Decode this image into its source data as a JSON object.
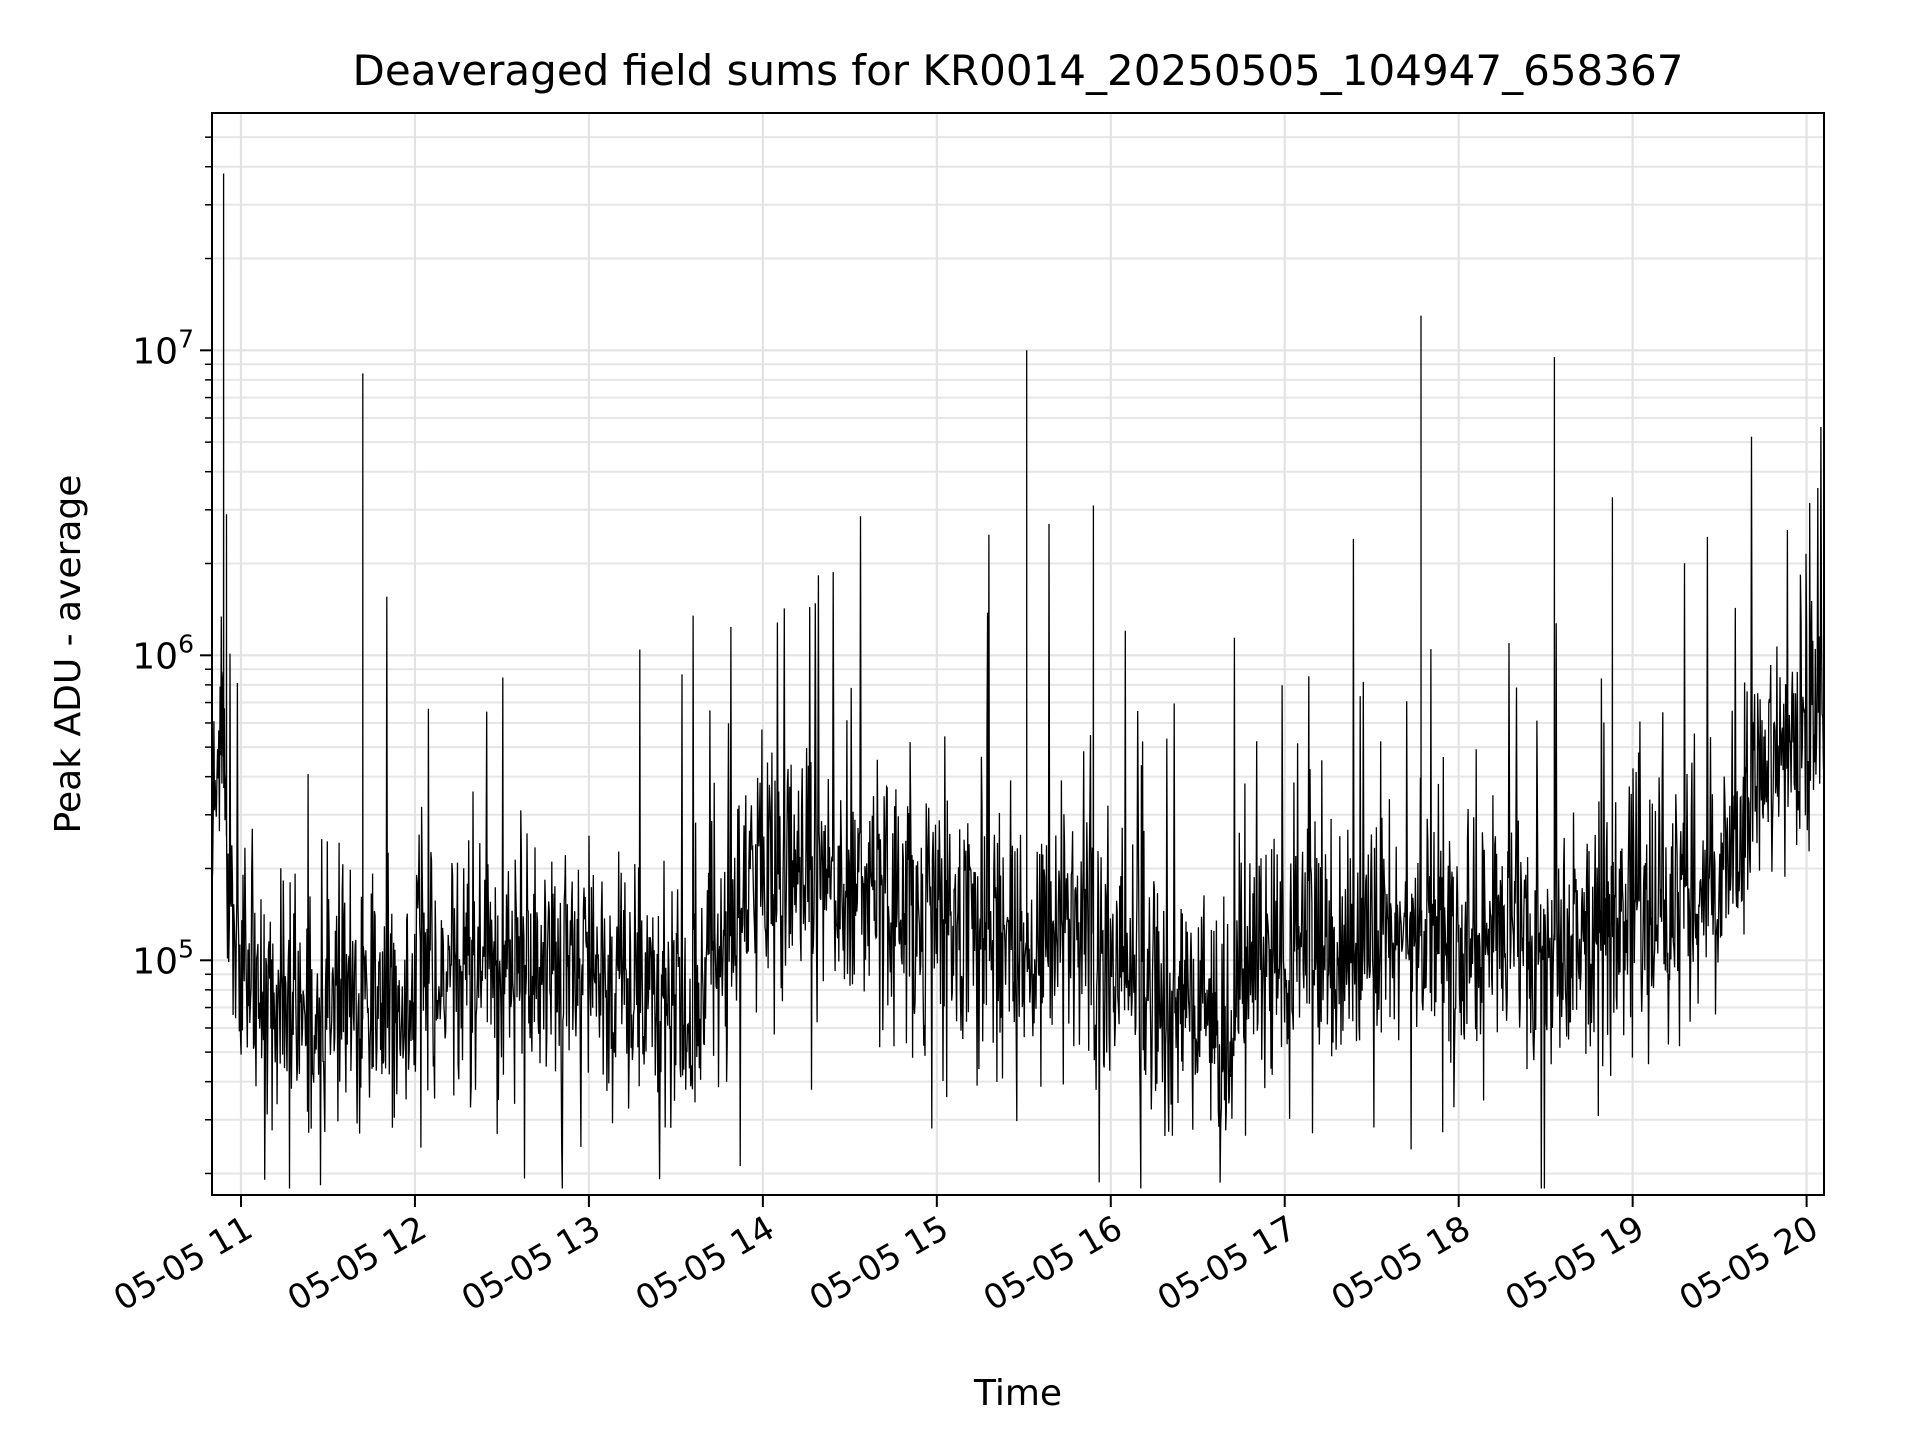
{
  "chart_data": {
    "type": "line",
    "title": "Deaveraged field sums for KR0014_20250505_104947_658367",
    "xlabel": "Time",
    "ylabel": "Peak ADU - average",
    "yscale": "log",
    "grid": true,
    "line_color": "#000000",
    "xlim": [
      "2025-05-05 10:50",
      "2025-05-05 20:06"
    ],
    "ylim": [
      17000,
      60000000
    ],
    "x_ticks": [
      {
        "value": "2025-05-05 11:00",
        "label": "05-05 11"
      },
      {
        "value": "2025-05-05 12:00",
        "label": "05-05 12"
      },
      {
        "value": "2025-05-05 13:00",
        "label": "05-05 13"
      },
      {
        "value": "2025-05-05 14:00",
        "label": "05-05 14"
      },
      {
        "value": "2025-05-05 15:00",
        "label": "05-05 15"
      },
      {
        "value": "2025-05-05 16:00",
        "label": "05-05 16"
      },
      {
        "value": "2025-05-05 17:00",
        "label": "05-05 17"
      },
      {
        "value": "2025-05-05 18:00",
        "label": "05-05 18"
      },
      {
        "value": "2025-05-05 19:00",
        "label": "05-05 19"
      },
      {
        "value": "2025-05-05 20:00",
        "label": "05-05 20"
      }
    ],
    "y_ticks": [
      {
        "value": 100000,
        "base": "10",
        "exp": "5"
      },
      {
        "value": 1000000,
        "base": "10",
        "exp": "6"
      },
      {
        "value": 10000000,
        "base": "10",
        "exp": "7"
      }
    ],
    "series": [
      {
        "points": [
          [
            "2025-05-05 10:50",
            250000
          ],
          [
            "2025-05-05 10:53",
            850000
          ],
          [
            "2025-05-05 10:54",
            38000000
          ],
          [
            "2025-05-05 10:55",
            2900000
          ],
          [
            "2025-05-05 10:56",
            140000
          ],
          [
            "2025-05-05 11:00",
            95000
          ],
          [
            "2025-05-05 11:10",
            75000
          ],
          [
            "2025-05-05 11:20",
            60000
          ],
          [
            "2025-05-05 11:30",
            80000
          ],
          [
            "2025-05-05 11:42",
            8400000
          ],
          [
            "2025-05-05 11:50",
            70000
          ],
          [
            "2025-05-05 12:00",
            85000
          ],
          [
            "2025-05-05 12:10",
            90000
          ],
          [
            "2025-05-05 12:20",
            100000
          ],
          [
            "2025-05-05 12:30",
            100000
          ],
          [
            "2025-05-05 12:40",
            95000
          ],
          [
            "2025-05-05 12:50",
            90000
          ],
          [
            "2025-05-05 13:00",
            95000
          ],
          [
            "2025-05-05 13:10",
            90000
          ],
          [
            "2025-05-05 13:20",
            80000
          ],
          [
            "2025-05-05 13:30",
            70000
          ],
          [
            "2025-05-05 13:40",
            80000
          ],
          [
            "2025-05-05 13:50",
            110000
          ],
          [
            "2025-05-05 14:00",
            200000
          ],
          [
            "2025-05-05 14:10",
            200000
          ],
          [
            "2025-05-05 14:20",
            180000
          ],
          [
            "2025-05-05 14:30",
            170000
          ],
          [
            "2025-05-05 14:40",
            160000
          ],
          [
            "2025-05-05 14:50",
            140000
          ],
          [
            "2025-05-05 15:00",
            140000
          ],
          [
            "2025-05-05 15:10",
            130000
          ],
          [
            "2025-05-05 15:20",
            120000
          ],
          [
            "2025-05-05 15:31",
            10000000
          ],
          [
            "2025-05-05 15:40",
            110000
          ],
          [
            "2025-05-05 15:50",
            150000
          ],
          [
            "2025-05-05 15:54",
            3100000
          ],
          [
            "2025-05-05 16:00",
            90000
          ],
          [
            "2025-05-05 16:10",
            80000
          ],
          [
            "2025-05-05 16:20",
            70000
          ],
          [
            "2025-05-05 16:30",
            65000
          ],
          [
            "2025-05-05 16:40",
            60000
          ],
          [
            "2025-05-05 16:50",
            110000
          ],
          [
            "2025-05-05 17:00",
            110000
          ],
          [
            "2025-05-05 17:10",
            100000
          ],
          [
            "2025-05-05 17:20",
            100000
          ],
          [
            "2025-05-05 17:30",
            130000
          ],
          [
            "2025-05-05 17:40",
            120000
          ],
          [
            "2025-05-05 17:47",
            13000000
          ],
          [
            "2025-05-05 17:50",
            120000
          ],
          [
            "2025-05-05 18:00",
            120000
          ],
          [
            "2025-05-05 18:10",
            130000
          ],
          [
            "2025-05-05 18:20",
            130000
          ],
          [
            "2025-05-05 18:33",
            9500000
          ],
          [
            "2025-05-05 18:40",
            120000
          ],
          [
            "2025-05-05 18:50",
            120000
          ],
          [
            "2025-05-05 18:53",
            3300000
          ],
          [
            "2025-05-05 19:00",
            160000
          ],
          [
            "2025-05-05 19:10",
            150000
          ],
          [
            "2025-05-05 19:20",
            160000
          ],
          [
            "2025-05-05 19:30",
            200000
          ],
          [
            "2025-05-05 19:40",
            300000
          ],
          [
            "2025-05-05 19:50",
            450000
          ],
          [
            "2025-05-05 20:00",
            550000
          ],
          [
            "2025-05-05 20:06",
            500000
          ]
        ]
      }
    ]
  }
}
